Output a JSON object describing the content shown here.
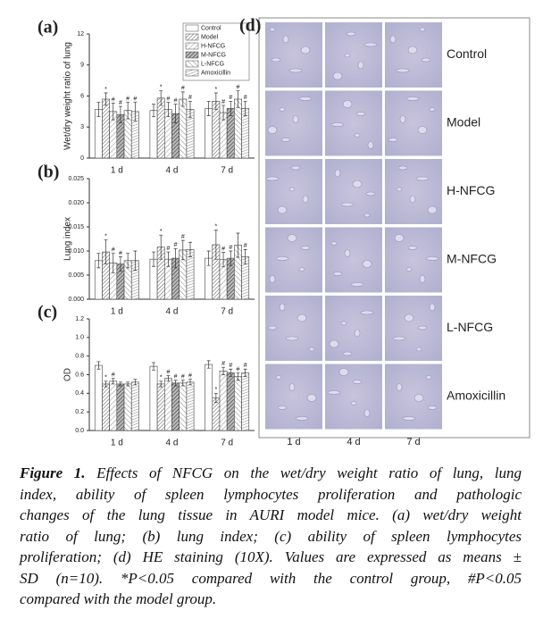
{
  "chart_data": [
    {
      "type": "bar",
      "panel_label": "(a)",
      "y_label": "Wet/dry weight ratio of lung",
      "categories": [
        "1 d",
        "4 d",
        "7 d"
      ],
      "ylim": [
        0,
        12
      ],
      "yticks": [
        0,
        3,
        6,
        9,
        12
      ],
      "legend": "upper right",
      "series": [
        {
          "name": "Control",
          "color": "#ffffff",
          "hatch": "none",
          "values": [
            4.7,
            4.6,
            4.8
          ],
          "errors": [
            0.7,
            0.6,
            0.7
          ],
          "markers": [
            null,
            null,
            null
          ]
        },
        {
          "name": "Model",
          "color": "#ffffff",
          "hatch": "dense",
          "values": [
            5.7,
            5.8,
            5.5
          ],
          "errors": [
            0.6,
            0.7,
            0.8
          ],
          "markers": [
            "*",
            "*",
            "*"
          ]
        },
        {
          "name": "H-NFCG",
          "color": "#ffffff",
          "hatch": "diag",
          "values": [
            4.5,
            4.7,
            4.4
          ],
          "errors": [
            0.8,
            0.7,
            0.7
          ],
          "markers": [
            "#",
            "#",
            "#"
          ]
        },
        {
          "name": "M-NFCG",
          "color": "#ffffff",
          "hatch": "darkdiag",
          "values": [
            4.2,
            4.3,
            4.8
          ],
          "errors": [
            0.8,
            0.9,
            0.7
          ],
          "markers": [
            "#",
            "#",
            "#"
          ]
        },
        {
          "name": "L-NFCG",
          "color": "#ffffff",
          "hatch": "back",
          "values": [
            4.6,
            5.7,
            5.7
          ],
          "errors": [
            0.8,
            0.7,
            0.8
          ],
          "markers": [
            "#",
            "#",
            "#"
          ]
        },
        {
          "name": "Amoxicillin",
          "color": "#ffffff",
          "hatch": "vert",
          "values": [
            4.5,
            4.7,
            4.8
          ],
          "errors": [
            0.9,
            0.8,
            0.7
          ],
          "markers": [
            "#",
            "#",
            "#"
          ]
        }
      ]
    },
    {
      "type": "bar",
      "panel_label": "(b)",
      "y_label": "Lung index",
      "categories": [
        "1 d",
        "4 d",
        "7 d"
      ],
      "ylim": [
        0,
        0.025
      ],
      "yticks": [
        {
          "value": 0,
          "label": "0.000"
        },
        {
          "value": 0.005,
          "label": "0.005"
        },
        {
          "value": 0.01,
          "label": "0.010"
        },
        {
          "value": 0.015,
          "label": "0.015"
        },
        {
          "value": 0.02,
          "label": "0.020"
        },
        {
          "value": 0.025,
          "label": "0.025"
        }
      ],
      "series": [
        {
          "name": "Control",
          "color": "#ffffff",
          "hatch": "none",
          "values": [
            0.008,
            0.0083,
            0.0085
          ],
          "errors": [
            0.0015,
            0.0015,
            0.0015
          ],
          "markers": [
            null,
            null,
            null
          ]
        },
        {
          "name": "Model",
          "color": "#ffffff",
          "hatch": "dense",
          "values": [
            0.0098,
            0.0108,
            0.0113
          ],
          "errors": [
            0.0025,
            0.0025,
            0.003
          ],
          "markers": [
            "*",
            "*",
            "*"
          ]
        },
        {
          "name": "H-NFCG",
          "color": "#ffffff",
          "hatch": "diag",
          "values": [
            0.0075,
            0.0083,
            0.0082
          ],
          "errors": [
            0.002,
            0.0015,
            0.0015
          ],
          "markers": [
            "#",
            "#",
            "#"
          ]
        },
        {
          "name": "M-NFCG",
          "color": "#ffffff",
          "hatch": "darkdiag",
          "values": [
            0.0073,
            0.0085,
            0.0085
          ],
          "errors": [
            0.0015,
            0.002,
            0.0015
          ],
          "markers": [
            "#",
            "#",
            "#"
          ]
        },
        {
          "name": "L-NFCG",
          "color": "#ffffff",
          "hatch": "back",
          "values": [
            0.008,
            0.0102,
            0.0112
          ],
          "errors": [
            0.0015,
            0.002,
            0.0025
          ],
          "markers": [
            null,
            "#",
            null
          ]
        },
        {
          "name": "Amoxicillin",
          "color": "#ffffff",
          "hatch": "vert",
          "values": [
            0.008,
            0.0103,
            0.0088
          ],
          "errors": [
            0.002,
            0.0015,
            0.0015
          ],
          "markers": [
            null,
            null,
            "#"
          ]
        }
      ]
    },
    {
      "type": "bar",
      "panel_label": "(c)",
      "y_label": "OD",
      "categories": [
        "1 d",
        "4 d",
        "7 d"
      ],
      "ylim": [
        0,
        1.2
      ],
      "yticks": [
        {
          "value": 0,
          "label": "0.0"
        },
        0.2,
        0.4,
        0.6,
        0.8,
        {
          "value": 1,
          "label": "1.0"
        },
        1.2
      ],
      "series": [
        {
          "name": "Control",
          "color": "#ffffff",
          "hatch": "none",
          "values": [
            0.7,
            0.69,
            0.71
          ],
          "errors": [
            0.04,
            0.04,
            0.04
          ],
          "markers": [
            null,
            null,
            null
          ]
        },
        {
          "name": "Model",
          "color": "#ffffff",
          "hatch": "dense",
          "values": [
            0.5,
            0.5,
            0.35
          ],
          "errors": [
            0.03,
            0.03,
            0.05
          ],
          "markers": [
            "*",
            "*",
            "*"
          ]
        },
        {
          "name": "H-NFCG",
          "color": "#ffffff",
          "hatch": "diag",
          "values": [
            0.53,
            0.56,
            0.64
          ],
          "errors": [
            0.03,
            0.03,
            0.04
          ],
          "markers": [
            "#",
            "#",
            "#"
          ]
        },
        {
          "name": "M-NFCG",
          "color": "#ffffff",
          "hatch": "darkdiag",
          "values": [
            0.5,
            0.51,
            0.62
          ],
          "errors": [
            0.02,
            0.03,
            0.04
          ],
          "markers": [
            null,
            "#",
            "#"
          ]
        },
        {
          "name": "L-NFCG",
          "color": "#ffffff",
          "hatch": "back",
          "values": [
            0.5,
            0.51,
            0.58
          ],
          "errors": [
            0.02,
            0.03,
            0.04
          ],
          "markers": [
            null,
            "#",
            "#"
          ]
        },
        {
          "name": "Amoxicillin",
          "color": "#ffffff",
          "hatch": "vert",
          "values": [
            0.52,
            0.52,
            0.62
          ],
          "errors": [
            0.03,
            0.03,
            0.04
          ],
          "markers": [
            null,
            "#",
            "#"
          ]
        }
      ]
    }
  ],
  "panel_d": {
    "panel_label": "(d)",
    "rows": [
      "Control",
      "Model",
      "H-NFCG",
      "M-NFCG",
      "L-NFCG",
      "Amoxicillin"
    ],
    "columns": [
      "1 d",
      "4 d",
      "7 d"
    ]
  },
  "caption": {
    "label": "Figure 1.",
    "lines": [
      "Effects of NFCG on the wet/dry weight ratio of lung, lung",
      "index, ability of spleen lymphocytes proliferation and pathologic",
      "changes of the lung tissue in AURI model mice. (a) wet/dry weight",
      "ratio of lung; (b) lung index; (c) ability of spleen lymphocytes",
      "proliferation; (d) HE staining (10X). Values are expressed as means ±",
      "SD (n=10). *P<0.05 compared with the control group, #P<0.05",
      "compared with the model group."
    ]
  }
}
